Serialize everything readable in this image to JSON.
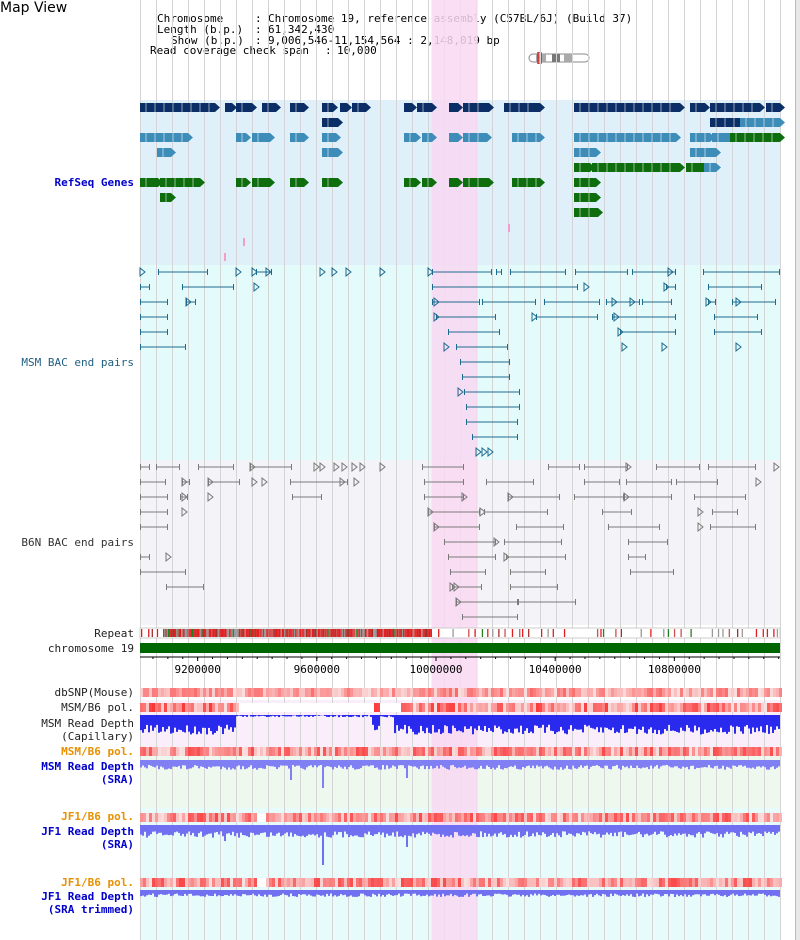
{
  "title": "Map View",
  "header": {
    "chromosome_label": "Chromosome",
    "chromosome_value": "Chromosome 19, reference assembly (C57BL/6J) (Build 37)",
    "length_label": "Length (b.p.)",
    "length_value": "61,342,430",
    "show_label": "Show (b.p.)",
    "show_value": "9,006,546-11,154,564 : 2,148,019 bp",
    "coverage_label": "Read coverage check span",
    "coverage_value": "10,000"
  },
  "tracks": {
    "refseq": "RefSeq Genes",
    "msm_bac": "MSM BAC end pairs",
    "b6n_bac": "B6N BAC end pairs",
    "repeat": "Repeat",
    "chromosome": "chromosome 19",
    "dbsnp": "dbSNP(Mouse)",
    "msm_b6_pol_1": "MSM/B6 pol.",
    "msm_read_depth_cap_1": "MSM Read Depth",
    "msm_read_depth_cap_2": "(Capillary)",
    "msm_b6_pol_2": "MSM/B6 pol.",
    "msm_read_depth_sra_1": "MSM Read Depth",
    "msm_read_depth_sra_2": "(SRA)",
    "jf1_b6_pol_1": "JF1/B6 pol.",
    "jf1_read_depth_1": "JF1 Read Depth",
    "jf1_read_depth_2": "(SRA)",
    "jf1_b6_pol_2": "JF1/B6 pol.",
    "jf1_read_depth_trim_1": "JF1 Read Depth",
    "jf1_read_depth_trim_2": "(SRA trimmed)"
  },
  "axis": {
    "ticks": [
      "9200000",
      "9600000",
      "10000000",
      "10400000",
      "10800000"
    ],
    "tick_values": [
      9200000,
      9600000,
      10000000,
      10400000,
      10800000
    ],
    "range": [
      9006546,
      11154564
    ]
  },
  "highlight_region": [
    9985000,
    10140000
  ],
  "colors": {
    "refseq_bg": "#dff0fb",
    "msm_bg": "#e4fbfb",
    "b6n_bg": "#f4f4f8",
    "highlight": "#f8d8f2",
    "gene_dark": "#0b2e66",
    "gene_mid": "#3e8cb8",
    "gene_green": "#0e6e0e",
    "msm_pair": "#1f6b8e",
    "b6n_pair": "#7a7a7a",
    "chromosome": "#006600",
    "depth_blue": "#3030ee"
  }
}
